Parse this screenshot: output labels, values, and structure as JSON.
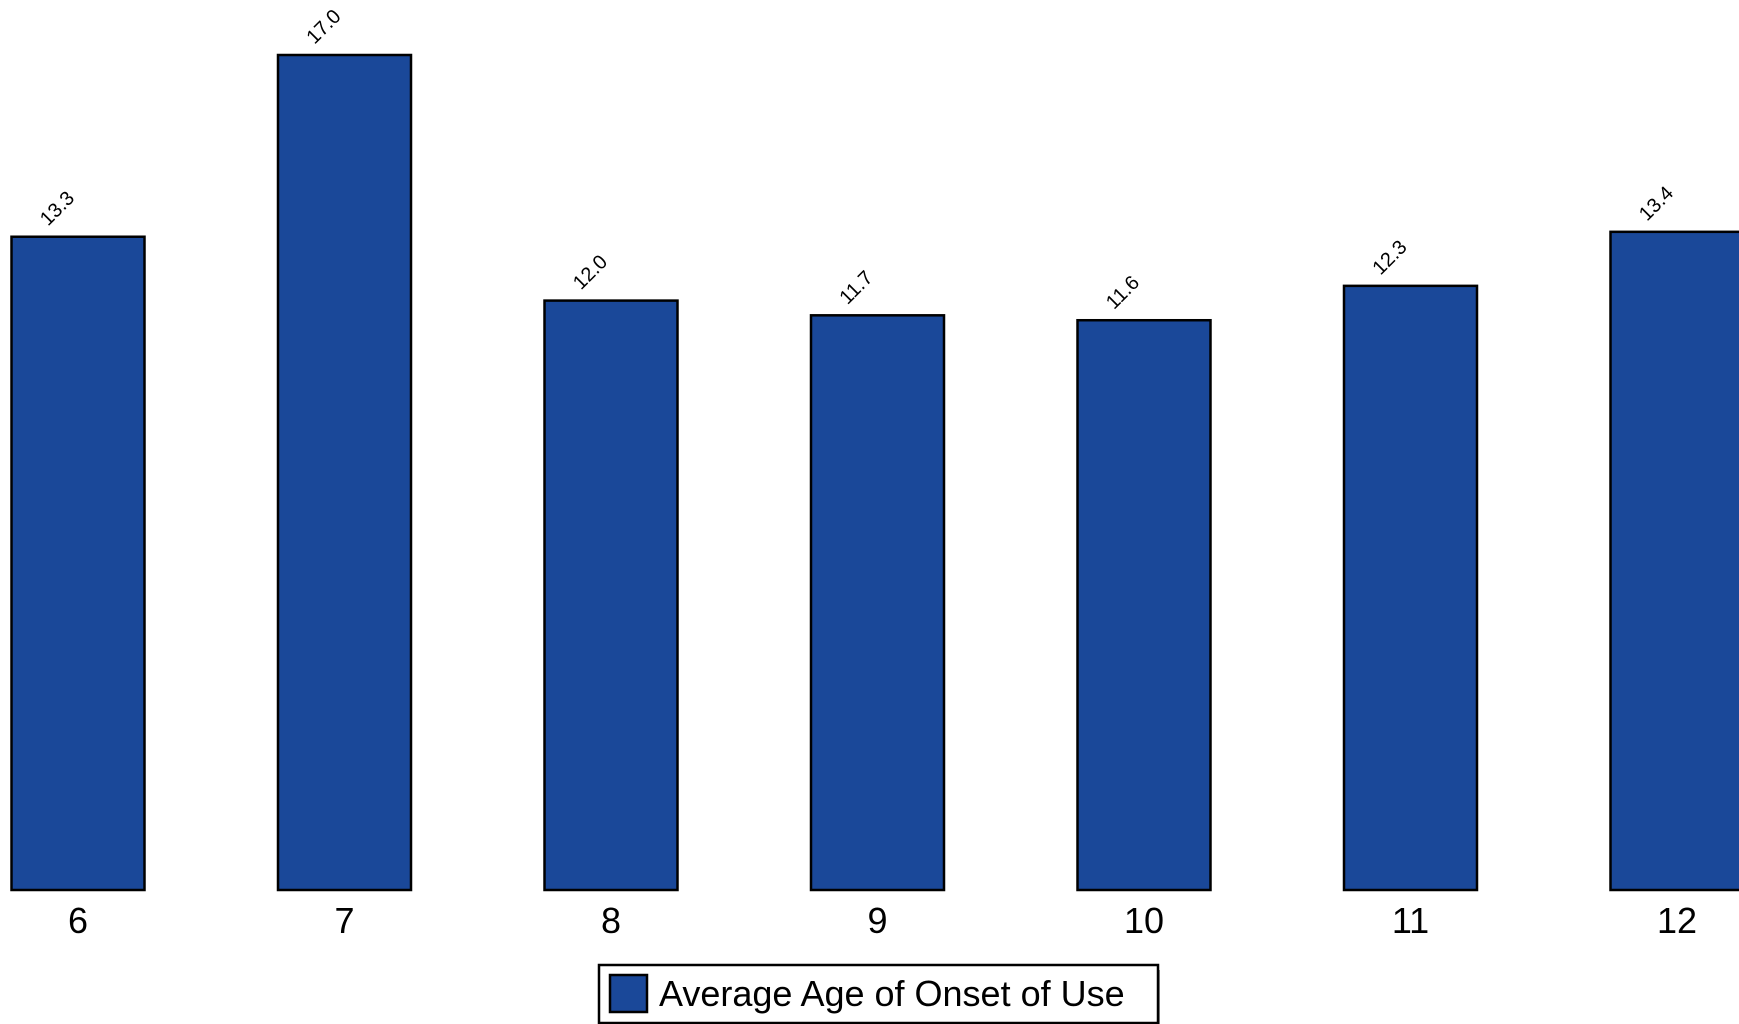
{
  "chart_data": {
    "type": "bar",
    "categories": [
      "6",
      "7",
      "8",
      "9",
      "10",
      "11",
      "12"
    ],
    "series": [
      {
        "name": "Average Age of Onset of Use",
        "values": [
          13.3,
          17.0,
          12.0,
          11.7,
          11.6,
          12.3,
          13.4
        ],
        "value_labels": [
          "13.3",
          "17.0",
          "12.0",
          "11.7",
          "11.6",
          "12.3",
          "13.4"
        ]
      }
    ],
    "title": "",
    "xlabel": "",
    "ylabel": "",
    "ylim": [
      0,
      17.0
    ],
    "grid": false,
    "legend": {
      "placement": "bottom-center",
      "label": "Average Age of Onset of Use"
    },
    "colors": {
      "bar_fill": "#1a4899",
      "bar_stroke": "#000000",
      "legend_shadow": "#9a9a9a"
    }
  }
}
